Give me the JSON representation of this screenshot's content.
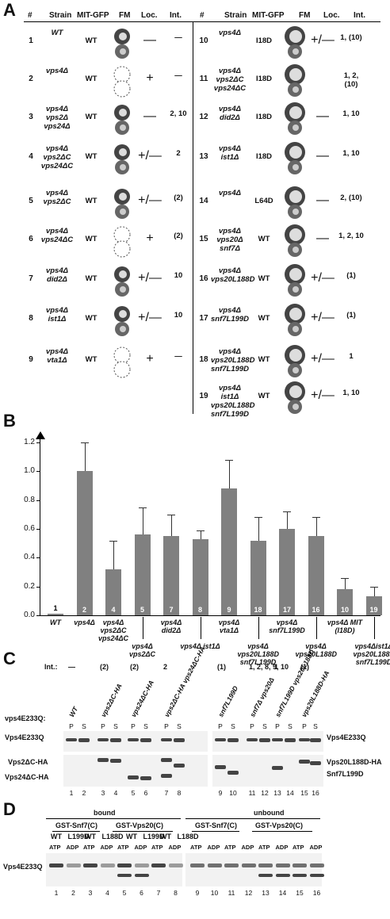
{
  "panel_labels": {
    "A": "A",
    "B": "B",
    "C": "C",
    "D": "D"
  },
  "panel_a": {
    "headers": [
      "#",
      "Strain",
      "MIT-GFP",
      "FM",
      "Loc.",
      "Int."
    ],
    "rows_left": [
      {
        "num": "1",
        "strain": "WT",
        "mit": "WT",
        "loc": "—",
        "int": "—"
      },
      {
        "num": "2",
        "strain": "vps4Δ",
        "mit": "WT",
        "loc": "+",
        "int": "—"
      },
      {
        "num": "3",
        "strain": "vps4Δ vps2Δ vps24Δ",
        "mit": "WT",
        "loc": "—",
        "int": "2, 10"
      },
      {
        "num": "4",
        "strain": "vps4Δ vps2ΔC vps24ΔC",
        "mit": "WT",
        "loc": "+/—",
        "int": "2"
      },
      {
        "num": "5",
        "strain": "vps4Δ vps2ΔC",
        "mit": "WT",
        "loc": "+/—",
        "int": "(2)"
      },
      {
        "num": "6",
        "strain": "vps4Δ vps24ΔC",
        "mit": "WT",
        "loc": "+",
        "int": "(2)"
      },
      {
        "num": "7",
        "strain": "vps4Δ did2Δ",
        "mit": "WT",
        "loc": "+/—",
        "int": "10"
      },
      {
        "num": "8",
        "strain": "vps4Δ ist1Δ",
        "mit": "WT",
        "loc": "+/—",
        "int": "10"
      },
      {
        "num": "9",
        "strain": "vps4Δ vta1Δ",
        "mit": "WT",
        "loc": "+",
        "int": "—"
      }
    ],
    "rows_right": [
      {
        "num": "10",
        "strain": "vps4Δ",
        "mit": "I18D",
        "loc": "+/—",
        "int": "1, (10)"
      },
      {
        "num": "11",
        "strain": "vps4Δ vps2ΔC vps24ΔC",
        "mit": "I18D",
        "loc": "",
        "int": "1, 2, (10)"
      },
      {
        "num": "12",
        "strain": "vps4Δ did2Δ",
        "mit": "I18D",
        "loc": "—",
        "int": "1, 10"
      },
      {
        "num": "13",
        "strain": "vps4Δ ist1Δ",
        "mit": "I18D",
        "loc": "—",
        "int": "1, 10"
      },
      {
        "num": "14",
        "strain": "vps4Δ",
        "mit": "L64D",
        "loc": "—",
        "int": "2, (10)"
      },
      {
        "num": "15",
        "strain": "vps4Δ vps20Δ snf7Δ",
        "mit": "WT",
        "loc": "—",
        "int": "1, 2, 10"
      },
      {
        "num": "16",
        "strain": "vps4Δ vps20L188D",
        "mit": "WT",
        "loc": "+/—",
        "int": "(1)"
      },
      {
        "num": "17",
        "strain": "vps4Δ snf7L199D",
        "mit": "WT",
        "loc": "+/—",
        "int": "(1)"
      },
      {
        "num": "18",
        "strain": "vps4Δ vps20L188D snf7L199D",
        "mit": "WT",
        "loc": "+/—",
        "int": "1"
      },
      {
        "num": "19",
        "strain": "vps4Δ ist1Δ vps20L188D snf7L199D",
        "mit": "WT",
        "loc": "+/—",
        "int": "1, 10"
      }
    ]
  },
  "chart_data": {
    "type": "bar",
    "ylim": [
      0,
      1.2
    ],
    "yticks": [
      "0.0",
      "0.2",
      "0.4",
      "0.6",
      "0.8",
      "1.0",
      "1.2"
    ],
    "bar_ids": [
      "1",
      "2",
      "4",
      "5",
      "7",
      "8",
      "9",
      "18",
      "17",
      "16",
      "10",
      "19"
    ],
    "values": [
      0.01,
      1.0,
      0.32,
      0.56,
      0.55,
      0.53,
      0.88,
      0.52,
      0.6,
      0.55,
      0.18,
      0.13
    ],
    "errors": [
      0.0,
      0.2,
      0.2,
      0.19,
      0.15,
      0.06,
      0.2,
      0.16,
      0.12,
      0.13,
      0.08,
      0.07
    ],
    "labels": [
      "WT",
      "vps4Δ",
      "vps4Δ vps2ΔC vps24ΔC",
      "vps4Δ vps2ΔC",
      "vps4Δ did2Δ",
      "vps4Δ ist1Δ",
      "vps4Δ vta1Δ",
      "vps4Δ vps20L188D snf7L199D",
      "vps4Δ snf7L199D",
      "vps4Δ vps20L188D",
      "vps4Δ MIT (I18D)",
      "vps4Δist1Δ vps20L188D snf7L199D"
    ]
  },
  "panel_c": {
    "int_label": "Int.:",
    "int_values": [
      "—",
      "(2)",
      "(2)",
      "2",
      "(1)",
      "1, 2, 8, 9, 10",
      "1",
      "(1)"
    ],
    "genotype_label": "vps4E233Q:",
    "genotypes": [
      "WT",
      "vps2ΔC-HA",
      "vps24ΔC-HA",
      "vps2ΔC-HA vps24ΔC-HA",
      "snf7L199D",
      "snf7Δ vps20Δ",
      "snf7L199D vps20L188D",
      "vps20L188D-HA"
    ],
    "ps": [
      "P",
      "S"
    ],
    "left_labels": [
      "Vps4E233Q",
      "Vps2ΔC-HA",
      "Vps24ΔC-HA"
    ],
    "right_labels": [
      "Vps4E233Q",
      "Vps20L188D-HA",
      "Snf7L199D"
    ],
    "lanes": [
      "1",
      "2",
      "3",
      "4",
      "5",
      "6",
      "7",
      "8",
      "9",
      "10",
      "11",
      "12",
      "13",
      "14",
      "15",
      "16"
    ]
  },
  "panel_d": {
    "groups": [
      "bound",
      "unbound"
    ],
    "proteins": [
      "GST-Snf7(C)",
      "GST-Vps20(C)"
    ],
    "variants": [
      "WT",
      "L199D",
      "WT",
      "L188D"
    ],
    "nucleotides": [
      "ATP",
      "ADP"
    ],
    "left_label": "Vps4E233Q",
    "lanes": [
      "1",
      "2",
      "3",
      "4",
      "5",
      "6",
      "7",
      "8",
      "9",
      "10",
      "11",
      "12",
      "13",
      "14",
      "15",
      "16"
    ]
  }
}
